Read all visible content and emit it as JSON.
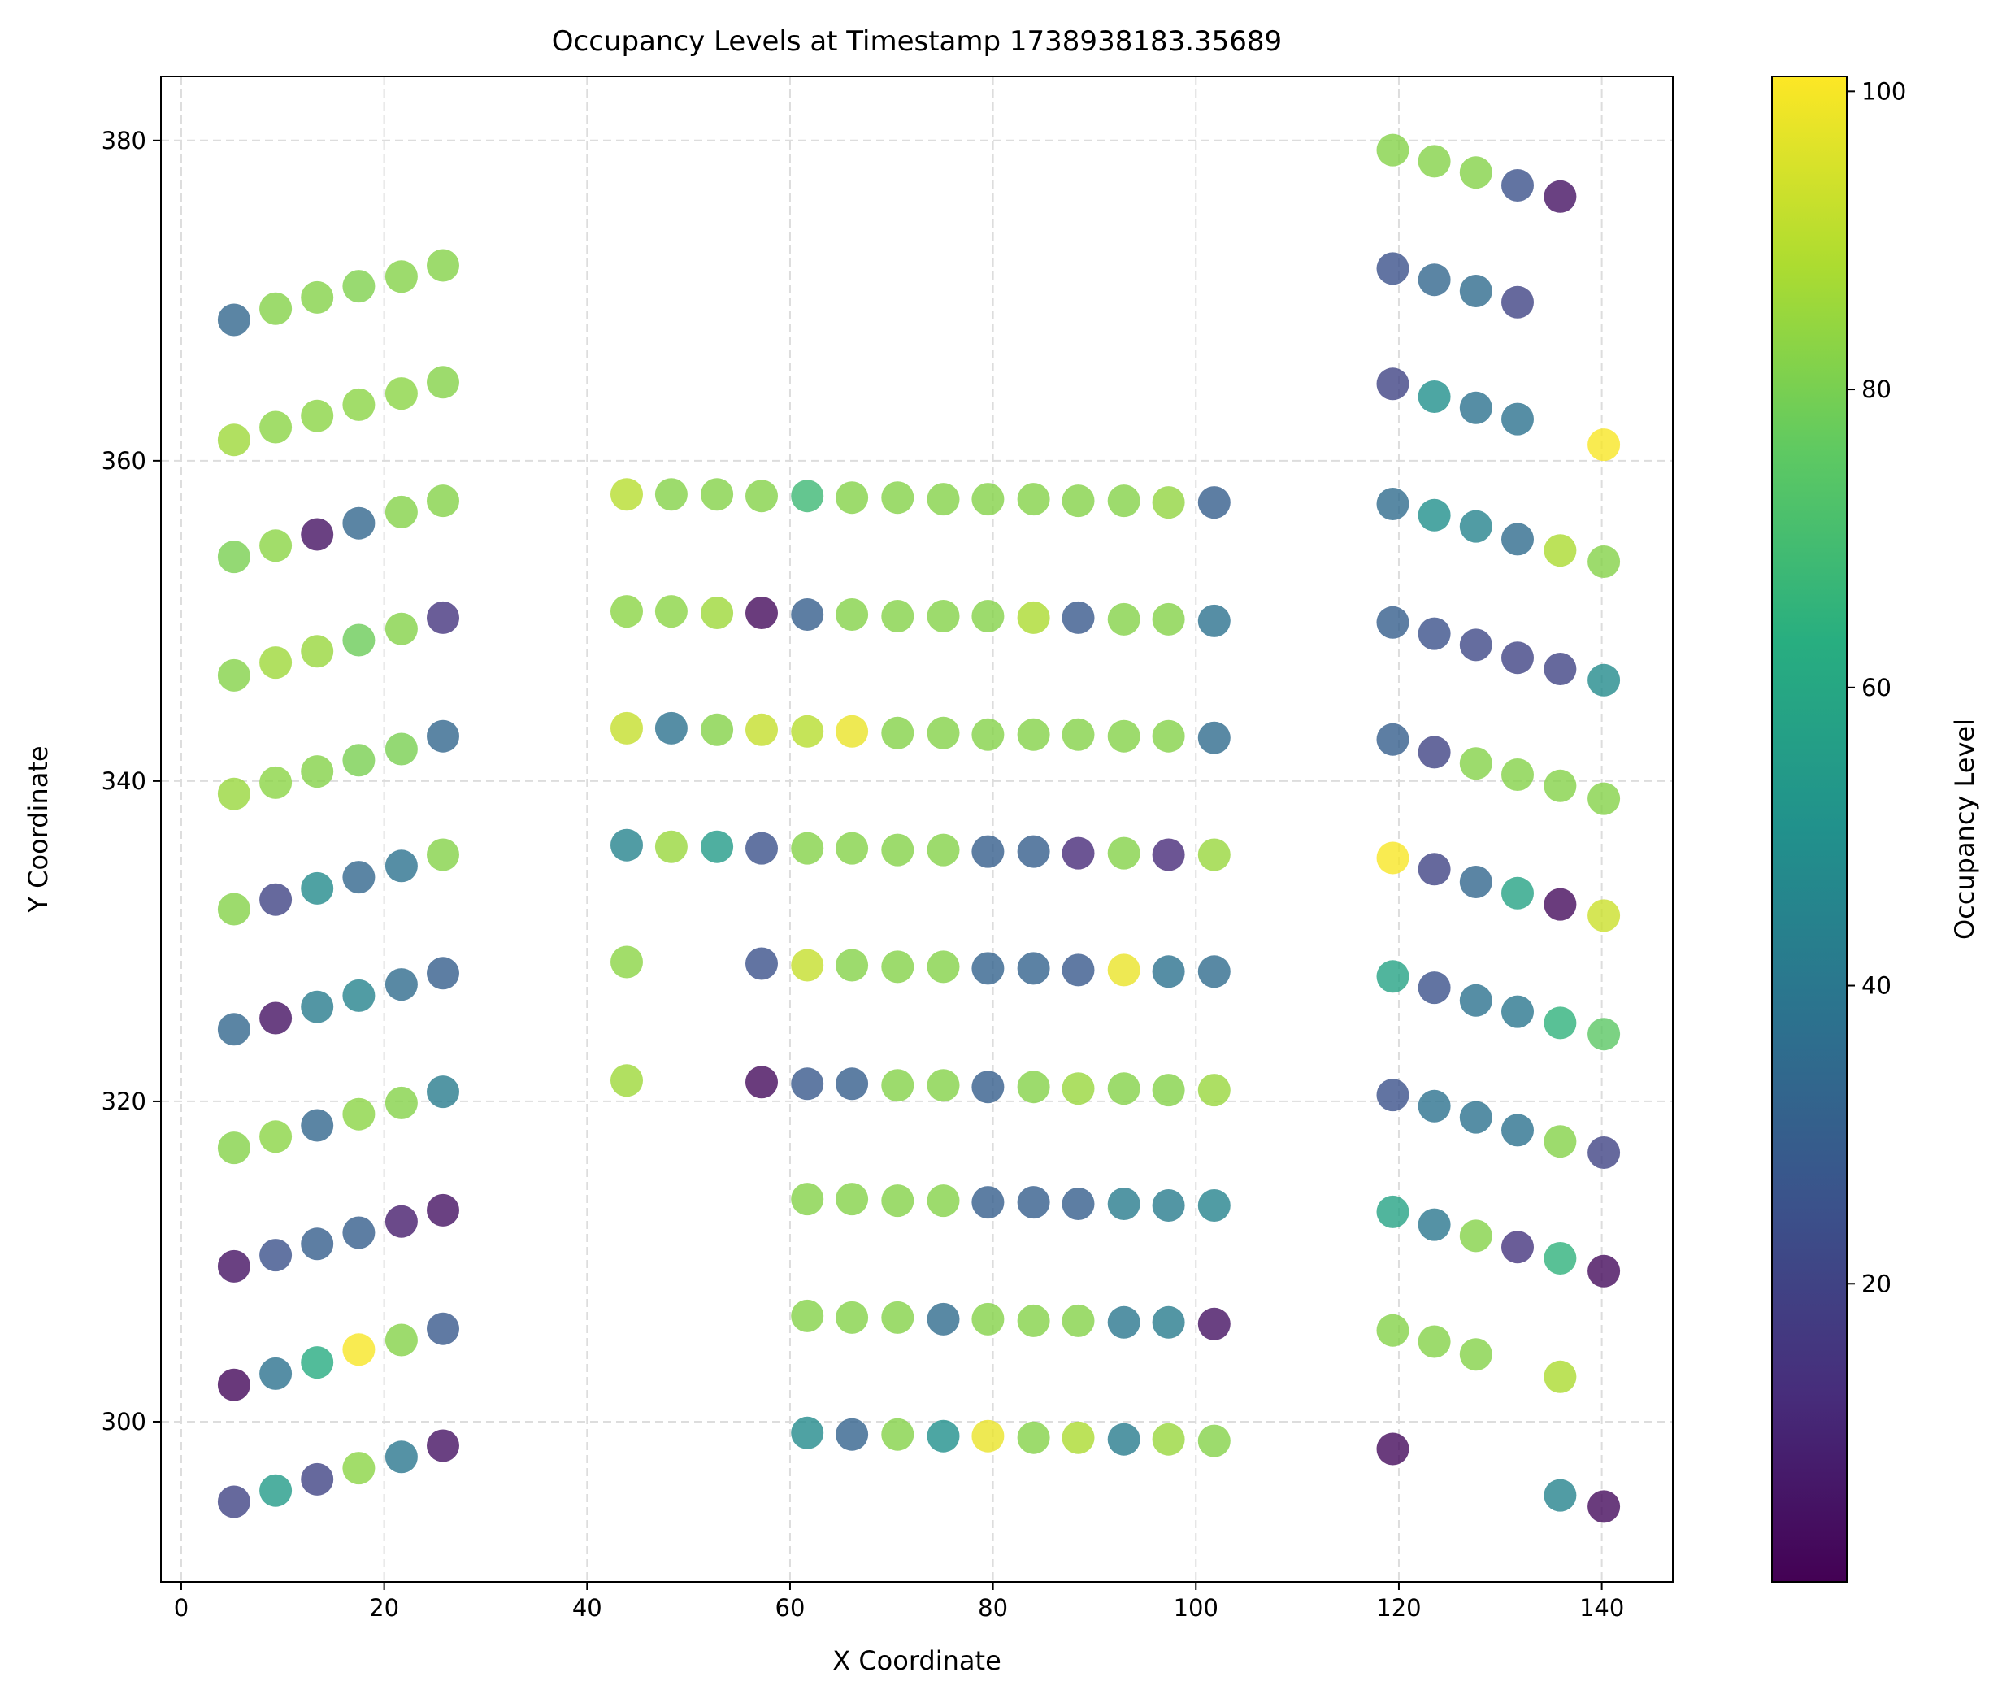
{
  "chart_data": {
    "type": "scatter",
    "title": "Occupancy Levels at Timestamp 1738938183.35689",
    "xlabel": "X Coordinate",
    "ylabel": "Y Coordinate",
    "xlim": [
      -2,
      147
    ],
    "ylim": [
      290,
      384
    ],
    "xticks": [
      0,
      20,
      40,
      60,
      80,
      100,
      120,
      140
    ],
    "yticks": [
      300,
      320,
      340,
      360,
      380
    ],
    "grid": true,
    "colorbar": {
      "label": "Occupancy Level",
      "colormap": "viridis",
      "range": [
        0,
        101
      ],
      "ticks": [
        20,
        40,
        60,
        80,
        100
      ]
    },
    "series": [
      {
        "group": "left",
        "points": [
          [
            5.2,
            368.8,
            33
          ],
          [
            9.3,
            369.5,
            82
          ],
          [
            13.4,
            370.2,
            82
          ],
          [
            17.5,
            370.9,
            81
          ],
          [
            21.7,
            371.5,
            82
          ],
          [
            25.8,
            372.2,
            82
          ],
          [
            5.2,
            361.3,
            86
          ],
          [
            9.3,
            362.1,
            83
          ],
          [
            13.4,
            362.8,
            83
          ],
          [
            17.5,
            363.5,
            83
          ],
          [
            21.7,
            364.2,
            83
          ],
          [
            25.8,
            364.9,
            82
          ],
          [
            5.2,
            354.0,
            80
          ],
          [
            9.3,
            354.7,
            83
          ],
          [
            13.4,
            355.4,
            5
          ],
          [
            17.5,
            356.1,
            33
          ],
          [
            21.7,
            356.8,
            82
          ],
          [
            25.8,
            357.5,
            82
          ],
          [
            5.2,
            346.6,
            82
          ],
          [
            9.3,
            347.4,
            86
          ],
          [
            13.4,
            348.1,
            85
          ],
          [
            17.5,
            348.8,
            78
          ],
          [
            21.7,
            349.5,
            82
          ],
          [
            25.8,
            350.2,
            15
          ],
          [
            5.2,
            339.2,
            85
          ],
          [
            9.3,
            339.9,
            83
          ],
          [
            13.4,
            340.6,
            82
          ],
          [
            17.5,
            341.3,
            80
          ],
          [
            21.7,
            342.0,
            80
          ],
          [
            25.8,
            342.8,
            33
          ],
          [
            5.2,
            332.0,
            82
          ],
          [
            9.3,
            332.6,
            20
          ],
          [
            13.4,
            333.3,
            48
          ],
          [
            17.5,
            334.0,
            33
          ],
          [
            21.7,
            334.7,
            38
          ],
          [
            25.8,
            335.4,
            82
          ],
          [
            5.2,
            324.5,
            33
          ],
          [
            9.3,
            325.2,
            5
          ],
          [
            13.4,
            325.9,
            42
          ],
          [
            17.5,
            326.6,
            45
          ],
          [
            21.7,
            327.3,
            35
          ],
          [
            25.8,
            328.0,
            30
          ],
          [
            5.2,
            317.1,
            82
          ],
          [
            9.3,
            317.8,
            83
          ],
          [
            13.4,
            318.5,
            33
          ],
          [
            17.5,
            319.2,
            83
          ],
          [
            21.7,
            319.9,
            82
          ],
          [
            25.8,
            320.6,
            42
          ],
          [
            5.2,
            309.7,
            5
          ],
          [
            9.3,
            310.4,
            25
          ],
          [
            13.4,
            311.1,
            30
          ],
          [
            17.5,
            311.8,
            30
          ],
          [
            21.7,
            312.5,
            8
          ],
          [
            25.8,
            313.2,
            5
          ],
          [
            5.2,
            302.3,
            2
          ],
          [
            9.3,
            303.0,
            38
          ],
          [
            13.4,
            303.7,
            62
          ],
          [
            17.5,
            304.5,
            100
          ],
          [
            21.7,
            305.1,
            82
          ],
          [
            25.8,
            305.8,
            28
          ],
          [
            5.2,
            295.0,
            20
          ],
          [
            9.3,
            295.7,
            55
          ],
          [
            13.4,
            296.4,
            20
          ],
          [
            17.5,
            297.1,
            83
          ],
          [
            21.7,
            297.8,
            40
          ],
          [
            25.8,
            298.5,
            5
          ]
        ]
      },
      {
        "group": "middle",
        "points": [
          [
            43.9,
            357.9,
            90
          ],
          [
            48.3,
            357.9,
            82
          ],
          [
            52.8,
            357.9,
            82
          ],
          [
            57.2,
            357.8,
            82
          ],
          [
            61.7,
            357.8,
            68
          ],
          [
            66.1,
            357.7,
            82
          ],
          [
            70.6,
            357.7,
            82
          ],
          [
            75.1,
            357.6,
            82
          ],
          [
            79.5,
            357.6,
            82
          ],
          [
            84.0,
            357.6,
            82
          ],
          [
            88.4,
            357.5,
            82
          ],
          [
            92.9,
            357.5,
            82
          ],
          [
            97.3,
            357.4,
            84
          ],
          [
            101.8,
            357.4,
            30
          ],
          [
            43.9,
            350.6,
            83
          ],
          [
            48.3,
            350.6,
            83
          ],
          [
            52.8,
            350.5,
            86
          ],
          [
            57.2,
            350.5,
            3
          ],
          [
            61.7,
            350.4,
            30
          ],
          [
            66.1,
            350.4,
            82
          ],
          [
            70.6,
            350.3,
            82
          ],
          [
            75.1,
            350.3,
            82
          ],
          [
            79.5,
            350.3,
            82
          ],
          [
            84.0,
            350.2,
            88
          ],
          [
            88.4,
            350.2,
            28
          ],
          [
            92.9,
            350.1,
            82
          ],
          [
            97.3,
            350.1,
            82
          ],
          [
            101.8,
            350.0,
            38
          ],
          [
            43.9,
            343.3,
            92
          ],
          [
            48.3,
            343.3,
            38
          ],
          [
            52.8,
            343.2,
            82
          ],
          [
            57.2,
            343.2,
            92
          ],
          [
            61.7,
            343.1,
            90
          ],
          [
            66.1,
            343.1,
            98
          ],
          [
            70.6,
            343.0,
            82
          ],
          [
            75.1,
            343.0,
            82
          ],
          [
            79.5,
            342.9,
            82
          ],
          [
            84.0,
            342.9,
            82
          ],
          [
            88.4,
            342.9,
            82
          ],
          [
            92.9,
            342.8,
            82
          ],
          [
            97.3,
            342.8,
            82
          ],
          [
            101.8,
            342.7,
            35
          ],
          [
            43.9,
            336.0,
            45
          ],
          [
            48.3,
            335.9,
            85
          ],
          [
            52.8,
            335.9,
            55
          ],
          [
            57.2,
            335.8,
            25
          ],
          [
            61.7,
            335.8,
            82
          ],
          [
            66.1,
            335.8,
            82
          ],
          [
            70.6,
            335.7,
            82
          ],
          [
            75.1,
            335.7,
            82
          ],
          [
            79.5,
            335.6,
            30
          ],
          [
            84.0,
            335.6,
            30
          ],
          [
            88.4,
            335.5,
            12
          ],
          [
            92.9,
            335.5,
            82
          ],
          [
            97.3,
            335.4,
            12
          ],
          [
            101.8,
            335.4,
            85
          ],
          [
            43.9,
            328.7,
            83
          ],
          [
            57.2,
            328.6,
            25
          ],
          [
            61.7,
            328.5,
            92
          ],
          [
            66.1,
            328.5,
            82
          ],
          [
            70.6,
            328.4,
            82
          ],
          [
            75.1,
            328.4,
            82
          ],
          [
            79.5,
            328.3,
            32
          ],
          [
            84.0,
            328.3,
            32
          ],
          [
            88.4,
            328.2,
            28
          ],
          [
            92.9,
            328.2,
            98
          ],
          [
            97.3,
            328.1,
            38
          ],
          [
            101.8,
            328.1,
            35
          ],
          [
            43.9,
            321.3,
            86
          ],
          [
            57.2,
            321.2,
            3
          ],
          [
            61.7,
            321.1,
            28
          ],
          [
            66.1,
            321.1,
            30
          ],
          [
            70.6,
            321.0,
            82
          ],
          [
            75.1,
            321.0,
            82
          ],
          [
            79.5,
            320.9,
            30
          ],
          [
            84.0,
            320.9,
            82
          ],
          [
            88.4,
            320.8,
            85
          ],
          [
            92.9,
            320.8,
            82
          ],
          [
            97.3,
            320.7,
            82
          ],
          [
            101.8,
            320.7,
            85
          ],
          [
            61.7,
            313.9,
            82
          ],
          [
            66.1,
            313.9,
            82
          ],
          [
            70.6,
            313.8,
            82
          ],
          [
            75.1,
            313.8,
            82
          ],
          [
            79.5,
            313.7,
            30
          ],
          [
            84.0,
            313.7,
            30
          ],
          [
            88.4,
            313.6,
            30
          ],
          [
            92.9,
            313.6,
            42
          ],
          [
            97.3,
            313.5,
            42
          ],
          [
            101.8,
            313.5,
            45
          ],
          [
            61.7,
            306.6,
            82
          ],
          [
            66.1,
            306.5,
            82
          ],
          [
            70.6,
            306.5,
            82
          ],
          [
            75.1,
            306.4,
            35
          ],
          [
            79.5,
            306.4,
            82
          ],
          [
            84.0,
            306.3,
            82
          ],
          [
            88.4,
            306.3,
            82
          ],
          [
            92.9,
            306.2,
            40
          ],
          [
            97.3,
            306.2,
            42
          ],
          [
            101.8,
            306.1,
            5
          ],
          [
            61.7,
            299.3,
            48
          ],
          [
            66.1,
            299.2,
            32
          ],
          [
            70.6,
            299.2,
            82
          ],
          [
            75.1,
            299.1,
            50
          ],
          [
            79.5,
            299.1,
            98
          ],
          [
            84.0,
            299.0,
            82
          ],
          [
            88.4,
            299.0,
            88
          ],
          [
            92.9,
            298.9,
            42
          ],
          [
            97.3,
            298.9,
            85
          ],
          [
            101.8,
            298.8,
            82
          ]
        ]
      },
      {
        "group": "right",
        "points": [
          [
            119.4,
            379.4,
            82
          ],
          [
            123.5,
            378.7,
            82
          ],
          [
            127.6,
            378.0,
            82
          ],
          [
            131.7,
            377.2,
            25
          ],
          [
            135.9,
            376.5,
            5
          ],
          [
            119.4,
            372.0,
            25
          ],
          [
            123.5,
            371.3,
            33
          ],
          [
            127.6,
            370.6,
            35
          ],
          [
            131.7,
            369.9,
            20
          ],
          [
            119.4,
            364.8,
            20
          ],
          [
            123.5,
            364.0,
            50
          ],
          [
            127.6,
            363.3,
            38
          ],
          [
            131.7,
            362.6,
            38
          ],
          [
            140.2,
            361.0,
            100
          ],
          [
            119.4,
            357.3,
            35
          ],
          [
            123.5,
            356.6,
            50
          ],
          [
            127.6,
            355.9,
            45
          ],
          [
            131.7,
            355.1,
            35
          ],
          [
            135.9,
            354.4,
            88
          ],
          [
            140.2,
            353.7,
            82
          ],
          [
            119.4,
            349.9,
            30
          ],
          [
            123.5,
            349.2,
            25
          ],
          [
            127.6,
            348.5,
            22
          ],
          [
            131.7,
            347.7,
            20
          ],
          [
            135.9,
            347.0,
            20
          ],
          [
            140.2,
            346.3,
            48
          ],
          [
            119.4,
            342.6,
            30
          ],
          [
            123.5,
            341.8,
            20
          ],
          [
            127.6,
            341.1,
            82
          ],
          [
            131.7,
            340.4,
            82
          ],
          [
            135.9,
            339.7,
            82
          ],
          [
            140.2,
            338.9,
            82
          ],
          [
            119.4,
            335.2,
            100
          ],
          [
            123.5,
            334.5,
            20
          ],
          [
            127.6,
            333.7,
            33
          ],
          [
            131.7,
            333.0,
            58
          ],
          [
            135.9,
            332.3,
            3
          ],
          [
            140.2,
            331.6,
            93
          ],
          [
            119.4,
            327.8,
            58
          ],
          [
            123.5,
            327.1,
            25
          ],
          [
            127.6,
            326.3,
            38
          ],
          [
            131.7,
            325.6,
            40
          ],
          [
            135.9,
            324.9,
            65
          ],
          [
            140.2,
            324.2,
            75
          ],
          [
            119.4,
            320.4,
            25
          ],
          [
            123.5,
            319.7,
            38
          ],
          [
            127.6,
            319.0,
            38
          ],
          [
            131.7,
            318.2,
            38
          ],
          [
            135.9,
            317.5,
            82
          ],
          [
            140.2,
            316.8,
            20
          ],
          [
            119.4,
            313.1,
            58
          ],
          [
            123.5,
            312.3,
            40
          ],
          [
            127.6,
            311.6,
            82
          ],
          [
            131.7,
            310.9,
            15
          ],
          [
            135.9,
            310.2,
            65
          ],
          [
            140.2,
            309.4,
            3
          ],
          [
            119.4,
            305.7,
            82
          ],
          [
            123.5,
            305.0,
            82
          ],
          [
            127.6,
            304.2,
            82
          ],
          [
            135.9,
            302.8,
            88
          ],
          [
            119.4,
            298.3,
            3
          ],
          [
            135.9,
            295.4,
            45
          ],
          [
            140.2,
            294.7,
            3
          ]
        ]
      }
    ]
  }
}
